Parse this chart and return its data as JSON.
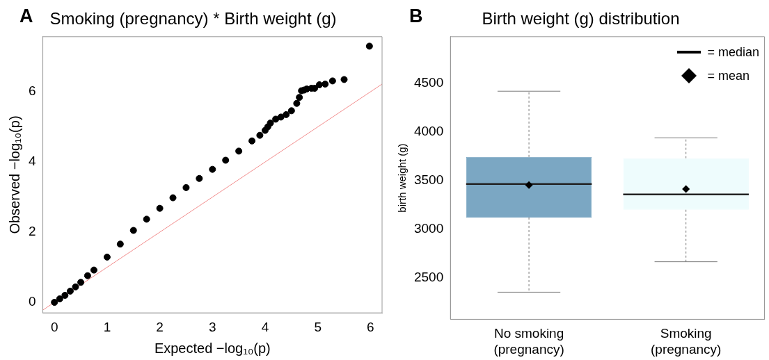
{
  "chart_data": [
    {
      "type": "scatter",
      "title": "Smoking (pregnancy) * Birth weight (g)",
      "xlabel": "Expected −log₁₀(p)",
      "ylabel": "Observed −log₁₀(p)",
      "annotations": [
        "A"
      ],
      "series": [
        {
          "type": "scatter",
          "color": "#000000",
          "marker": "circle",
          "x": [
            0,
            0.1,
            0.2,
            0.3,
            0.4,
            0.5,
            0.63,
            0.75,
            1,
            1.25,
            1.5,
            1.75,
            2,
            2.25,
            2.5,
            2.75,
            3,
            3.25,
            3.5,
            3.75,
            3.9,
            4.0,
            4.05,
            4.1,
            4.2,
            4.3,
            4.4,
            4.5,
            4.6,
            4.65,
            4.69,
            4.74,
            4.79,
            4.88,
            4.94,
            5.03,
            5.14,
            5.28,
            5.5,
            5.98
          ],
          "values": [
            0,
            0.1,
            0.2,
            0.32,
            0.44,
            0.57,
            0.76,
            0.92,
            1.29,
            1.66,
            2.05,
            2.37,
            2.68,
            2.98,
            3.27,
            3.53,
            3.79,
            4.05,
            4.31,
            4.6,
            4.76,
            4.9,
            5.0,
            5.11,
            5.22,
            5.28,
            5.35,
            5.46,
            5.67,
            5.84,
            6.03,
            6.05,
            6.08,
            6.1,
            6.1,
            6.2,
            6.22,
            6.31,
            6.35,
            7.3
          ]
        },
        {
          "type": "line",
          "color": "#f28e8e",
          "marker": "none",
          "x": [
            -0.22,
            6.22
          ],
          "values": [
            -0.22,
            6.22
          ]
        }
      ],
      "xlim": [
        -0.22,
        6.22
      ],
      "ylim": [
        -0.3,
        7.57
      ],
      "xticks": [
        0,
        1,
        2,
        3,
        4,
        5,
        6
      ],
      "yticks": [
        0,
        2,
        4,
        6
      ],
      "grid": false,
      "legend": false
    },
    {
      "type": "box",
      "title": "Birth weight (g) distribution",
      "ylabel": "birth weight (g)",
      "annotations": [
        "B",
        "= median",
        "= mean"
      ],
      "categories": [
        "No smoking\n(pregnancy)",
        "Smoking\n(pregnancy)"
      ],
      "colors": [
        "#7ba7c3",
        "#eefcfd"
      ],
      "boxes": [
        {
          "low": 2351,
          "q1": 3120,
          "median": 3464,
          "q3": 3743,
          "high": 4420,
          "mean": 3454
        },
        {
          "low": 2664,
          "q1": 3200,
          "median": 3357,
          "q3": 3730,
          "high": 3940,
          "mean": 3412
        }
      ],
      "ylim": [
        2072,
        4981
      ],
      "yticks": [
        2500,
        3000,
        3500,
        4000,
        4500
      ],
      "grid": false,
      "legend": false
    }
  ]
}
